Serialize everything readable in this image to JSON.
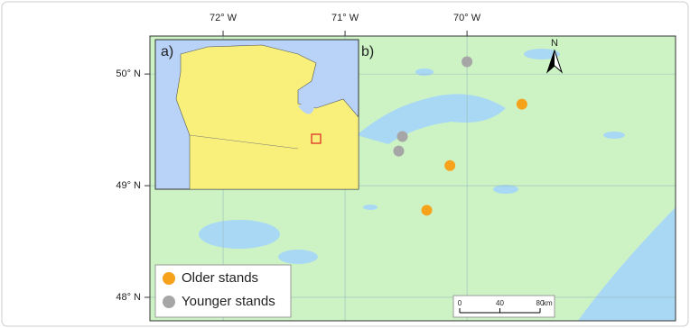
{
  "map": {
    "x_axis": {
      "lim": [
        -72.6,
        -68.29
      ],
      "ticks": [
        {
          "value": -72,
          "label": "72° W"
        },
        {
          "value": -71,
          "label": "71° W"
        },
        {
          "value": -70,
          "label": "70° W"
        }
      ]
    },
    "y_axis": {
      "lim": [
        47.79,
        50.34
      ],
      "ticks": [
        {
          "value": 50,
          "label": "50° N"
        },
        {
          "value": 49,
          "label": "49° N"
        },
        {
          "value": 48,
          "label": "48° N"
        }
      ]
    },
    "panel_labels": [
      "a)",
      "b)"
    ],
    "north_label": "N",
    "series": [
      {
        "name": "Older stands",
        "color": "#f7a21b",
        "lon": [
          -69.55,
          -70.14,
          -70.33
        ],
        "lat": [
          49.73,
          49.18,
          48.78
        ]
      },
      {
        "name": "Younger stands",
        "color": "#a6a6a6",
        "lon": [
          -70.0,
          -70.53,
          -70.56
        ],
        "lat": [
          50.11,
          49.44,
          49.31
        ]
      }
    ],
    "scale_bar": {
      "ticks": [
        0,
        40,
        80
      ],
      "unit": "km"
    }
  }
}
